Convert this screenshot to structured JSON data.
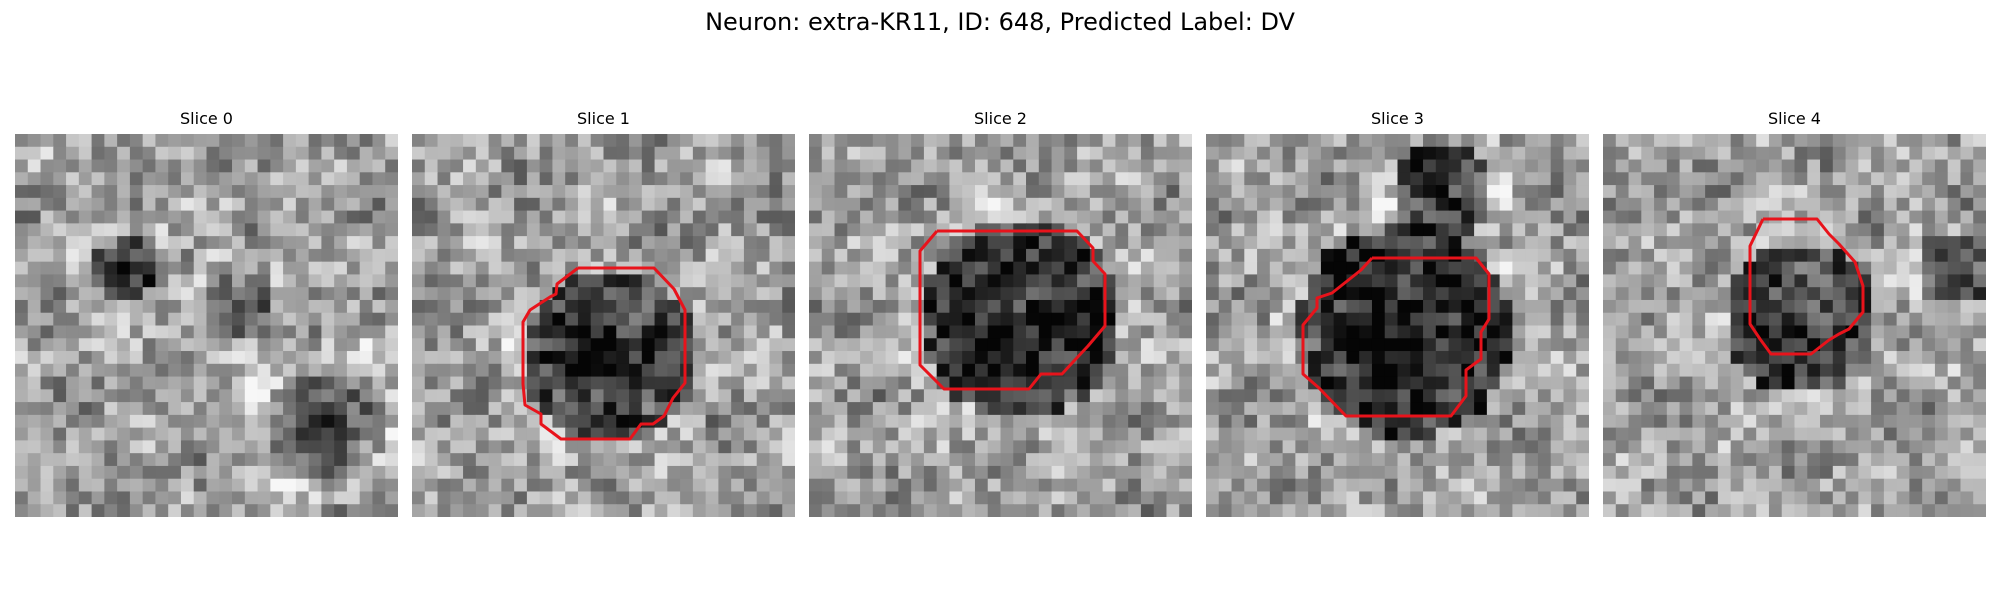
{
  "figure": {
    "title": "Neuron: extra-KR11, ID: 648, Predicted Label: DV"
  },
  "panels": [
    {
      "title": "Slice 0",
      "has_contour": false
    },
    {
      "title": "Slice 1",
      "has_contour": true
    },
    {
      "title": "Slice 2",
      "has_contour": true
    },
    {
      "title": "Slice 3",
      "has_contour": true
    },
    {
      "title": "Slice 4",
      "has_contour": true
    }
  ],
  "colors": {
    "contour": "#e8131b",
    "colormap": "gray"
  }
}
